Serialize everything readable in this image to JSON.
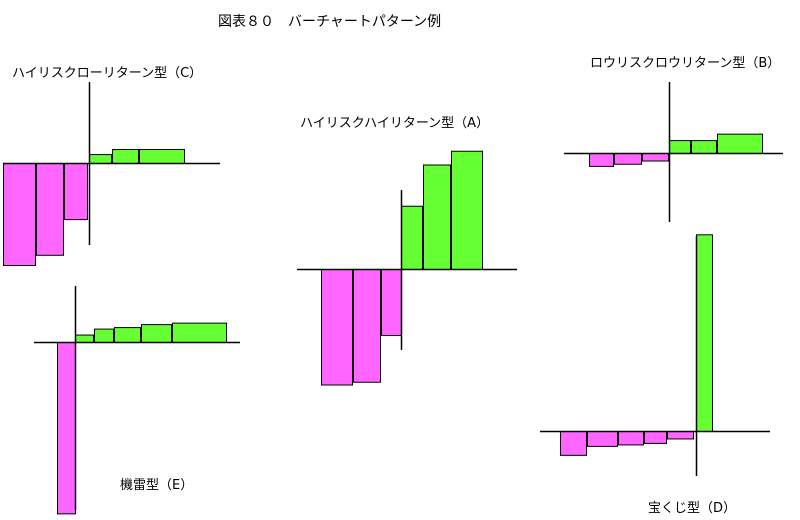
{
  "title": "図表８０　バーチャートパターン例",
  "colors": {
    "negative": "#ff66ff",
    "positive": "#66ff33",
    "outline": "#000000"
  },
  "chart_data": [
    {
      "type": "bar",
      "label": "ハイリスクローリターン型（C）",
      "values": [
        -4,
        -3.6,
        -2.2,
        0.35,
        0.55,
        0.55
      ]
    },
    {
      "type": "bar",
      "label": "ロウリスクロウリターン型（B）",
      "values": [
        -0.6,
        -0.5,
        -0.35,
        0.6,
        0.6,
        0.9
      ]
    },
    {
      "type": "bar",
      "label": "ハイリスクハイリターン型（A）",
      "values": [
        -4.2,
        -4.1,
        -2.4,
        2.3,
        3.8,
        4.3
      ]
    },
    {
      "type": "bar",
      "label": "機雷型（E）",
      "values": [
        -11.5,
        0.5,
        0.9,
        1.0,
        1.2,
        1.3
      ]
    },
    {
      "type": "bar",
      "label": "宝くじ型（D）",
      "values": [
        -1.6,
        -1.0,
        -0.9,
        -0.8,
        -0.5,
        13.2
      ]
    }
  ]
}
